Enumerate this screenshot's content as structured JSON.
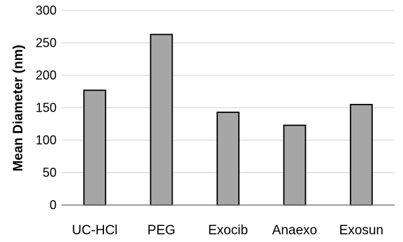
{
  "chart_data": {
    "type": "bar",
    "title": "",
    "xlabel": "",
    "ylabel": "Mean Diameter (nm)",
    "categories": [
      "UC-HCl",
      "PEG",
      "Exocib",
      "Anaexo",
      "Exosun"
    ],
    "values": [
      177,
      263,
      143,
      123,
      155
    ],
    "ylim": [
      0,
      300
    ],
    "yticks": [
      0,
      50,
      100,
      150,
      200,
      250,
      300
    ],
    "grid": true,
    "legend": "none",
    "colors": {
      "bar_fill": "#a6a6a6",
      "bar_stroke": "#000000",
      "grid": "#d9d9d9",
      "axis": "#7f7f7f"
    }
  }
}
